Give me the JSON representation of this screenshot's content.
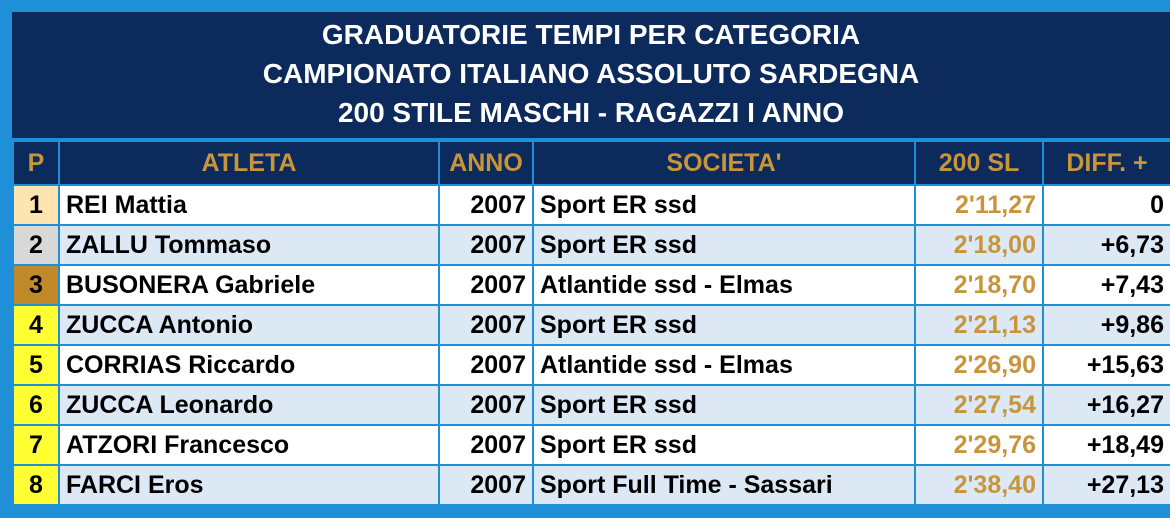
{
  "title": {
    "line1": "GRADUATORIE TEMPI PER CATEGORIA",
    "line2": "CAMPIONATO ITALIANO ASSOLUTO SARDEGNA",
    "line3": "200 STILE MASCHI - RAGAZZI I ANNO"
  },
  "columns": {
    "pos": "P",
    "athlete": "ATLETA",
    "year": "ANNO",
    "club": "SOCIETA'",
    "time": "200 SL",
    "diff": "DIFF. +"
  },
  "colors": {
    "header_bg": "#0c2a5c",
    "header_text": "#c9953a",
    "border": "#1f8fd8",
    "gold_pos": "#fde4b0",
    "silver_pos": "#d8d8d8",
    "bronze_pos": "#c08a2a",
    "other_pos": "#ffff33"
  },
  "rows": [
    {
      "pos": "1",
      "athlete": "REI Mattia",
      "year": "2007",
      "club": "Sport ER ssd",
      "time": "2'11,27",
      "diff": "0"
    },
    {
      "pos": "2",
      "athlete": "ZALLU Tommaso",
      "year": "2007",
      "club": "Sport ER ssd",
      "time": "2'18,00",
      "diff": "+6,73"
    },
    {
      "pos": "3",
      "athlete": "BUSONERA Gabriele",
      "year": "2007",
      "club": "Atlantide ssd - Elmas",
      "time": "2'18,70",
      "diff": "+7,43"
    },
    {
      "pos": "4",
      "athlete": "ZUCCA Antonio",
      "year": "2007",
      "club": "Sport ER ssd",
      "time": "2'21,13",
      "diff": "+9,86"
    },
    {
      "pos": "5",
      "athlete": "CORRIAS Riccardo",
      "year": "2007",
      "club": "Atlantide ssd - Elmas",
      "time": "2'26,90",
      "diff": "+15,63"
    },
    {
      "pos": "6",
      "athlete": "ZUCCA Leonardo",
      "year": "2007",
      "club": "Sport ER ssd",
      "time": "2'27,54",
      "diff": "+16,27"
    },
    {
      "pos": "7",
      "athlete": "ATZORI Francesco",
      "year": "2007",
      "club": "Sport ER ssd",
      "time": "2'29,76",
      "diff": "+18,49"
    },
    {
      "pos": "8",
      "athlete": "FARCI Eros",
      "year": "2007",
      "club": "Sport Full Time - Sassari",
      "time": "2'38,40",
      "diff": "+27,13"
    }
  ]
}
